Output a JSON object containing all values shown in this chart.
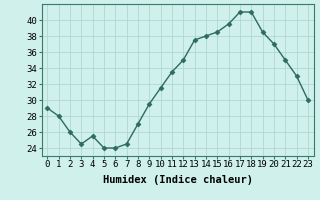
{
  "x": [
    0,
    1,
    2,
    3,
    4,
    5,
    6,
    7,
    8,
    9,
    10,
    11,
    12,
    13,
    14,
    15,
    16,
    17,
    18,
    19,
    20,
    21,
    22,
    23
  ],
  "y": [
    29,
    28,
    26,
    24.5,
    25.5,
    24,
    24,
    24.5,
    27,
    29.5,
    31.5,
    33.5,
    35,
    37.5,
    38,
    38.5,
    39.5,
    41,
    41,
    38.5,
    37,
    35,
    33,
    30
  ],
  "line_color": "#2d6b5e",
  "marker": "D",
  "marker_size": 2.5,
  "bg_color": "#cff0eb",
  "grid_color": "#b0d8d2",
  "xlabel": "Humidex (Indice chaleur)",
  "ylim": [
    23,
    42
  ],
  "xlim": [
    -0.5,
    23.5
  ],
  "yticks": [
    24,
    26,
    28,
    30,
    32,
    34,
    36,
    38,
    40
  ],
  "xticks": [
    0,
    1,
    2,
    3,
    4,
    5,
    6,
    7,
    8,
    9,
    10,
    11,
    12,
    13,
    14,
    15,
    16,
    17,
    18,
    19,
    20,
    21,
    22,
    23
  ],
  "tick_label_size": 6.5,
  "xlabel_size": 7.5,
  "line_width": 1.0
}
